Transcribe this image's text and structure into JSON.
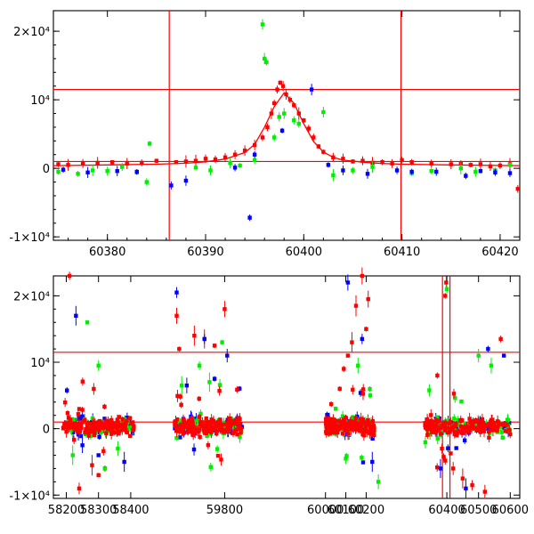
{
  "chart_data": [
    {
      "type": "scatter",
      "panel": "top",
      "title": "",
      "xlabel": "",
      "ylabel": "",
      "xlim": [
        60374.5,
        60422
      ],
      "ylim": [
        -10500,
        23000
      ],
      "xticks": [
        60380,
        60390,
        60400,
        60410,
        60420
      ],
      "xtick_labels": [
        "60380",
        "60390",
        "60400",
        "60410",
        "60420"
      ],
      "yticks": [
        -10000,
        0,
        10000,
        20000
      ],
      "ytick_labels": [
        "-1×10⁴",
        "0",
        "10⁴",
        "2×10⁴"
      ],
      "grid": false,
      "legend": "none",
      "colors": {
        "red": "#ff0000",
        "green": "#00ee00",
        "blue": "#0000ff",
        "ref_lines": "#ff0000",
        "model": "#ff0000"
      },
      "reference_lines": {
        "horizontal": [
          1000,
          11500
        ],
        "vertical": [
          60386.3,
          60409.9
        ]
      },
      "model_curve": {
        "x": [
          60374.5,
          60380,
          60385,
          60388,
          60390,
          60392,
          60394,
          60395,
          60396,
          60397,
          60398,
          60399,
          60400,
          60401,
          60402,
          60403,
          60404,
          60406,
          60408,
          60410,
          60415,
          60422
        ],
        "y": [
          400,
          500,
          600,
          750,
          950,
          1350,
          2300,
          3500,
          6000,
          9000,
          11000,
          9500,
          6500,
          3900,
          2400,
          1600,
          1200,
          900,
          700,
          600,
          500,
          400
        ]
      },
      "series": [
        {
          "color": "red",
          "x": [
            60375,
            60376,
            60377.5,
            60379,
            60380.5,
            60382,
            60383.5,
            60385,
            60387,
            60388,
            60389,
            60390,
            60391,
            60392,
            60393,
            60394,
            60395,
            60395.8,
            60396.3,
            60396.7,
            60397,
            60397.3,
            60397.6,
            60397.9,
            60398.2,
            60398.6,
            60399,
            60399.5,
            60400,
            60400.5,
            60401,
            60401.5,
            60402,
            60403,
            60404,
            60405,
            60406,
            60407,
            60408,
            60409,
            60410,
            60411,
            60413,
            60415,
            60416,
            60417,
            60418,
            60419,
            60420,
            60421,
            60421.8
          ],
          "y": [
            600,
            500,
            700,
            800,
            900,
            700,
            800,
            1100,
            900,
            1000,
            1100,
            1400,
            1300,
            1600,
            2000,
            2600,
            3400,
            4500,
            6000,
            8000,
            9500,
            11500,
            12500,
            12000,
            10800,
            10000,
            9200,
            8000,
            7000,
            5800,
            4500,
            3200,
            2400,
            1600,
            1400,
            1000,
            1100,
            800,
            900,
            700,
            1200,
            900,
            700,
            600,
            700,
            500,
            600,
            300,
            400,
            600,
            -3000
          ]
        },
        {
          "color": "green",
          "x": [
            60375,
            60377,
            60378.5,
            60380,
            60381.5,
            60383,
            60384,
            60384.3,
            60389,
            60390.5,
            60392.5,
            60393.5,
            60395,
            60395.8,
            60396,
            60396.2,
            60397,
            60397.5,
            60398,
            60399,
            60399.5,
            60402,
            60403,
            60405,
            60407,
            60411,
            60413,
            60416,
            60417.5,
            60419.5,
            60421
          ],
          "y": [
            -500,
            -800,
            -300,
            -400,
            200,
            -600,
            -2000,
            3600,
            100,
            -300,
            800,
            400,
            1200,
            21000,
            16000,
            15500,
            4500,
            7500,
            8000,
            7000,
            6500,
            8200,
            -1000,
            -300,
            200,
            -700,
            -400,
            0,
            -500,
            -300,
            500
          ]
        },
        {
          "color": "blue",
          "x": [
            60375.5,
            60378,
            60381,
            60383,
            60386.5,
            60388,
            60393,
            60394.5,
            60395,
            60397.8,
            60400.8,
            60402.5,
            60404,
            60406.5,
            60409.5,
            60411,
            60413.5,
            60416.5,
            60418,
            60419.5,
            60421
          ],
          "y": [
            -200,
            -600,
            -400,
            -500,
            -2500,
            -1800,
            100,
            -7200,
            2000,
            5500,
            11500,
            500,
            -300,
            -800,
            -300,
            -500,
            -500,
            -1100,
            -400,
            -600,
            -700
          ]
        }
      ]
    },
    {
      "type": "scatter",
      "panel": "bottom",
      "title": "",
      "xlabel": "",
      "ylabel": "",
      "segments": [
        {
          "xlim": [
            58160,
            58450
          ],
          "xticks": [
            58200,
            58300,
            58400
          ],
          "xtick_labels": [
            "58200",
            "58300",
            "58400"
          ]
        },
        {
          "xlim": [
            59580,
            59950
          ],
          "xticks": [
            59800
          ],
          "xtick_labels": [
            "59800"
          ]
        },
        {
          "xlim": [
            59870,
            60290
          ],
          "xticks": [
            60000,
            60100,
            60200
          ],
          "xtick_labels": [
            "60000",
            "60100",
            "60200"
          ]
        },
        {
          "xlim": [
            60310,
            60630
          ],
          "xticks": [
            60400,
            60500,
            60600
          ],
          "xtick_labels": [
            "60400",
            "60500",
            "60600"
          ]
        }
      ],
      "ylim": [
        -10500,
        23000
      ],
      "yticks": [
        -10000,
        0,
        10000,
        20000
      ],
      "ytick_labels": [
        "-1×10⁴",
        "0",
        "10⁴",
        "2×10⁴"
      ],
      "grid": false,
      "legend": "none",
      "reference_lines": {
        "horizontal": [
          1000,
          11500
        ],
        "vertical": [
          60386.3,
          60409.9
        ]
      },
      "observing_seasons": [
        [
          58190,
          58410
        ],
        [
          59600,
          59870
        ],
        [
          60000,
          60240
        ],
        [
          60330,
          60600
        ]
      ],
      "series": [
        {
          "color": "red",
          "x": [
            58210,
            58240,
            58280,
            58300,
            58320,
            59610,
            59620,
            59680,
            59720,
            59760,
            59800,
            60070,
            60090,
            60110,
            60130,
            60150,
            60180,
            60200,
            60210,
            60370,
            60395,
            60398,
            60420,
            60450,
            60480,
            60520,
            60570
          ],
          "y": [
            23000,
            -9000,
            -5500,
            -7000,
            -6000,
            17000,
            12000,
            14000,
            13500,
            12500,
            18000,
            6000,
            9000,
            11000,
            13000,
            18500,
            23000,
            15000,
            19500,
            8000,
            20000,
            22000,
            -6000,
            -7500,
            -8500,
            -9500,
            13500
          ]
        },
        {
          "color": "green",
          "x": [
            58220,
            58265,
            58300,
            58320,
            58360,
            59630,
            59700,
            59740,
            59790,
            60050,
            60100,
            60160,
            60220,
            60260,
            60400,
            60500,
            60540
          ],
          "y": [
            -4000,
            16000,
            9500,
            -6000,
            -3000,
            6500,
            9500,
            7000,
            13000,
            3000,
            -4500,
            9500,
            5000,
            -8000,
            21000,
            11000,
            9500
          ]
        },
        {
          "color": "blue",
          "x": [
            58230,
            58250,
            58300,
            58380,
            59610,
            59650,
            59720,
            59760,
            59810,
            60110,
            60180,
            60230,
            60380,
            60460,
            60530,
            60580
          ],
          "y": [
            17000,
            -2500,
            -4000,
            -5000,
            20500,
            6500,
            13500,
            7500,
            11000,
            22000,
            13500,
            -5000,
            -6000,
            -9000,
            12000,
            11000
          ]
        }
      ]
    }
  ]
}
